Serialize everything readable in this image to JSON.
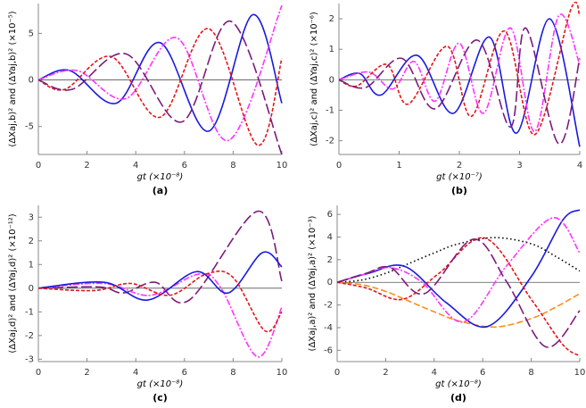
{
  "chart_data": [
    {
      "type": "line",
      "caption": "(a)",
      "xlabel": "gt (×10⁻⁸)",
      "ylabel": "(ΔXaj,b)² and (ΔYaj,b)² (×10⁻⁵)",
      "xlim": [
        0,
        10
      ],
      "ylim": [
        -8,
        8.2
      ],
      "xticks": [
        0,
        2,
        4,
        6,
        8,
        10
      ],
      "yticks": [
        -5,
        0,
        5
      ],
      "series": [
        {
          "color": "#1a1ae0",
          "dash": "none",
          "x": [
            0,
            1.3,
            3.2,
            5,
            7,
            8.8,
            10
          ],
          "values": [
            0,
            1,
            -2.5,
            4,
            -5.5,
            7,
            -2.5
          ]
        },
        {
          "color": "#ff33ff",
          "dash": "7 2 2 2",
          "x": [
            0,
            1.6,
            3.6,
            5.7,
            7.8,
            10
          ],
          "values": [
            0,
            1,
            -2,
            4.5,
            -6.5,
            8
          ]
        },
        {
          "color": "#e3161c",
          "dash": "4 2",
          "x": [
            0,
            1.1,
            3,
            5,
            7,
            9,
            10
          ],
          "values": [
            0,
            -1,
            2.5,
            -4,
            5.5,
            -7,
            2.3
          ]
        },
        {
          "color": "#7b1b7b",
          "dash": "12 4",
          "x": [
            0,
            1.4,
            3.6,
            5.9,
            7.9,
            10
          ],
          "values": [
            0,
            -1,
            2.8,
            -4.5,
            6.3,
            -8
          ]
        }
      ]
    },
    {
      "type": "line",
      "caption": "(b)",
      "xlabel": "gt (×10⁻⁷)",
      "ylabel": "(ΔXaj,c)² and (ΔYaj,c)² (×10⁻⁶)",
      "xlim": [
        0,
        4
      ],
      "ylim": [
        -2.45,
        2.5
      ],
      "xticks": [
        0,
        1,
        2,
        3,
        4
      ],
      "yticks": [
        -2,
        -1,
        0,
        1,
        2
      ],
      "series": [
        {
          "color": "#1a1ae0",
          "dash": "none",
          "x": [
            0,
            0.35,
            0.7,
            1.3,
            1.9,
            2.5,
            2.95,
            3.5,
            4
          ],
          "values": [
            0,
            0.2,
            -0.5,
            0.8,
            -1.1,
            1.4,
            -1.75,
            2,
            -2.2
          ]
        },
        {
          "color": "#ff33ff",
          "dash": "7 2 2 2",
          "x": [
            0,
            0.5,
            0.9,
            1.25,
            1.6,
            2,
            2.4,
            2.85,
            3.25,
            3.65,
            4
          ],
          "values": [
            0,
            0.25,
            -0.3,
            0.6,
            -0.7,
            1.2,
            -1.1,
            1.7,
            -1.7,
            2.1,
            0.5
          ]
        },
        {
          "color": "#e3161c",
          "dash": "4 2",
          "x": [
            0,
            0.3,
            0.8,
            1.15,
            1.8,
            2.2,
            2.75,
            3.25,
            3.85,
            4
          ],
          "values": [
            0,
            -0.2,
            0.5,
            -0.8,
            1.1,
            -1.2,
            1.6,
            -1.8,
            2.3,
            2.1
          ]
        },
        {
          "color": "#7b1b7b",
          "dash": "12 4",
          "x": [
            0,
            0.45,
            1.05,
            1.6,
            2.3,
            2.85,
            3.1,
            3.65,
            4
          ],
          "values": [
            0,
            -0.25,
            0.7,
            -0.95,
            1.3,
            -1.55,
            1.7,
            -2.1,
            0.7
          ]
        }
      ]
    },
    {
      "type": "line",
      "caption": "(c)",
      "xlabel": "gt (×10⁻⁸)",
      "ylabel": "(ΔXaj,d)² and (ΔYaj,d)² (×10⁻¹²)",
      "xlim": [
        0,
        10
      ],
      "ylim": [
        -3.1,
        3.5
      ],
      "xticks": [
        0,
        2,
        4,
        6,
        8,
        10
      ],
      "yticks": [
        -3,
        -2,
        -1,
        0,
        1,
        2,
        3
      ],
      "series": [
        {
          "color": "#7b1b7b",
          "dash": "12 4",
          "x": [
            0,
            2.5,
            3.5,
            4.8,
            6.2,
            9,
            10
          ],
          "values": [
            0,
            0.05,
            -0.2,
            0.25,
            -0.5,
            3.25,
            0.3
          ]
        },
        {
          "color": "#ff33ff",
          "dash": "7 2 2 2",
          "x": [
            0,
            2.7,
            4.6,
            6.6,
            7.5,
            9,
            10
          ],
          "values": [
            0,
            0.2,
            -0.3,
            0.6,
            0,
            -2.9,
            -0.8
          ]
        },
        {
          "color": "#1a1ae0",
          "dash": "none",
          "x": [
            0,
            2.7,
            4.5,
            6.5,
            7.8,
            9.2,
            10
          ],
          "values": [
            0,
            0.25,
            -0.5,
            0.7,
            -0.2,
            1.5,
            0.9
          ]
        },
        {
          "color": "#e3161c",
          "dash": "4 2",
          "x": [
            0,
            2.3,
            3.8,
            5.4,
            6.9,
            8,
            9.3,
            10
          ],
          "values": [
            0,
            -0.1,
            0.2,
            -0.3,
            0.6,
            0.45,
            -1.8,
            -1
          ]
        }
      ]
    },
    {
      "type": "line",
      "caption": "(d)",
      "xlabel": "gt (×10⁻⁸)",
      "ylabel": "(ΔXaj,a)² and (ΔYaj,a)² (×10⁻³)",
      "xlim": [
        0,
        10
      ],
      "ylim": [
        -7,
        6.8
      ],
      "xticks": [
        0,
        2,
        4,
        6,
        8,
        10
      ],
      "yticks": [
        -6,
        -4,
        -2,
        0,
        2,
        4,
        6
      ],
      "series": [
        {
          "color": "#000000",
          "dash": "1.5 3",
          "x": [
            0,
            1,
            2,
            3,
            4,
            5,
            6.5,
            8,
            9,
            10
          ],
          "values": [
            0,
            0.2,
            0.8,
            1.7,
            2.6,
            3.4,
            3.95,
            3.4,
            2.3,
            1
          ]
        },
        {
          "color": "#ff8c1a",
          "dash": "7 3",
          "x": [
            0,
            1,
            2,
            3,
            4,
            5,
            6.5,
            8,
            9,
            10
          ],
          "values": [
            0,
            -0.2,
            -0.8,
            -1.7,
            -2.6,
            -3.4,
            -3.95,
            -3.2,
            -2.2,
            -1
          ]
        },
        {
          "color": "#1a1ae0",
          "dash": "none",
          "x": [
            0,
            1.3,
            2.8,
            4.5,
            6.2,
            8,
            9.3,
            10
          ],
          "values": [
            0,
            0.8,
            1.4,
            -1.8,
            -3.9,
            0.5,
            5.5,
            6.4
          ]
        },
        {
          "color": "#ff33ff",
          "dash": "7 2 2 2",
          "x": [
            0,
            1.1,
            2.2,
            3.5,
            5.2,
            7,
            8.9,
            10
          ],
          "values": [
            0,
            0.7,
            1.3,
            0,
            -3.5,
            1.5,
            5.7,
            2.6
          ]
        },
        {
          "color": "#e3161c",
          "dash": "4 2",
          "x": [
            0,
            1.2,
            2.7,
            4.2,
            6.1,
            8,
            9.3,
            10
          ],
          "values": [
            0,
            -0.5,
            -1.5,
            0.8,
            3.9,
            -1.5,
            -5.5,
            -6.5
          ]
        },
        {
          "color": "#7b1b7b",
          "dash": "12 4",
          "x": [
            0,
            1.2,
            2.2,
            3.6,
            5.6,
            7,
            8.6,
            10
          ],
          "values": [
            0,
            0.8,
            1.3,
            -1,
            3.8,
            0,
            -5.7,
            -2.5
          ]
        }
      ]
    }
  ]
}
